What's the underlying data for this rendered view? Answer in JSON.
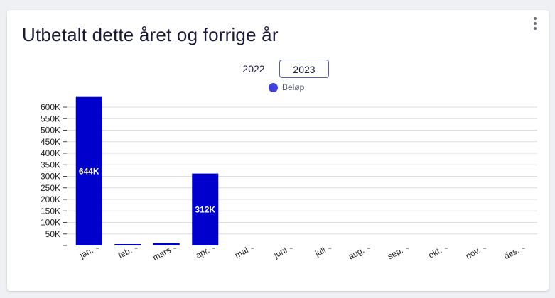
{
  "card": {
    "title": "Utbetalt dette året og forrige år"
  },
  "controls": {
    "years": [
      "2022",
      "2023"
    ],
    "selected_year": "2023"
  },
  "colors": {
    "bar": "#0000cc",
    "legend_dot": "#3f3fd9",
    "grid": "#dddddd"
  },
  "chart_data": {
    "type": "bar",
    "categories": [
      "jan.",
      "feb.",
      "mars",
      "apr.",
      "mai",
      "juni",
      "juli",
      "aug.",
      "sep.",
      "okt.",
      "nov.",
      "des."
    ],
    "series": [
      {
        "name": "Beløp",
        "values": [
          644000,
          4000,
          10000,
          312000,
          0,
          0,
          0,
          0,
          0,
          0,
          0,
          0
        ],
        "data_labels": [
          "644K",
          "",
          "",
          "312K",
          "",
          "",
          "",
          "",
          "",
          "",
          "",
          ""
        ]
      }
    ],
    "y_ticks": [
      50000,
      100000,
      150000,
      200000,
      250000,
      300000,
      350000,
      400000,
      450000,
      500000,
      550000,
      600000
    ],
    "y_tick_labels": [
      "50K",
      "100K",
      "150K",
      "200K",
      "250K",
      "300K",
      "350K",
      "400K",
      "450K",
      "500K",
      "550K",
      "600K"
    ],
    "ylim": [
      0,
      650000
    ],
    "grid": true,
    "legend": "top-center"
  }
}
